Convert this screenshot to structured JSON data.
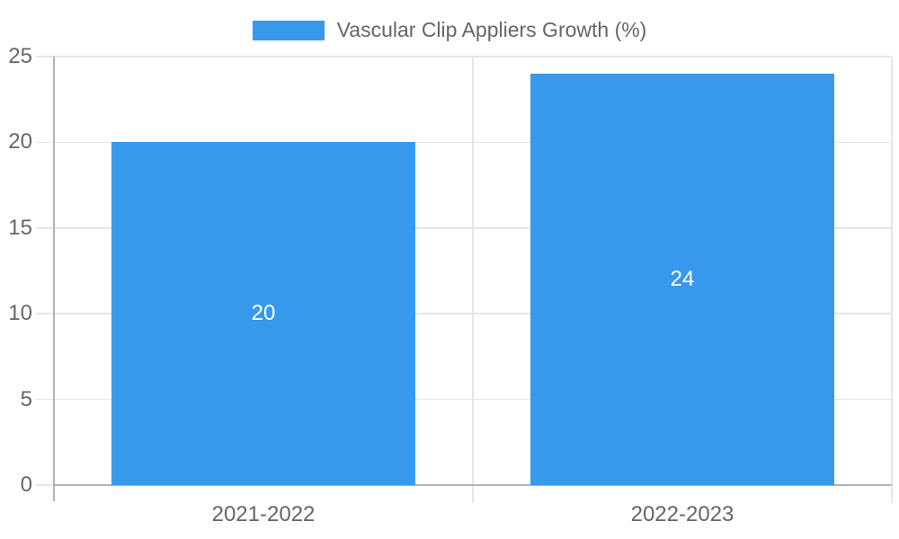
{
  "chart_data": {
    "type": "bar",
    "title": "Vascular Clip Appliers Growth (%)",
    "categories": [
      "2021-2022",
      "2022-2023"
    ],
    "values": [
      20,
      24
    ],
    "data_labels": [
      "20",
      "24"
    ],
    "xlabel": "",
    "ylabel": "",
    "ylim": [
      0,
      25
    ],
    "yticks": [
      0,
      5,
      10,
      15,
      20,
      25
    ],
    "grid": true,
    "legend_position": "top",
    "colors": {
      "bar": "#3899ec",
      "axis_text": "#666666",
      "data_label_text": "#ffffff",
      "gridline": "#e6e6e6",
      "axis_line": "#b3b3b3",
      "background": "#ffffff"
    }
  }
}
